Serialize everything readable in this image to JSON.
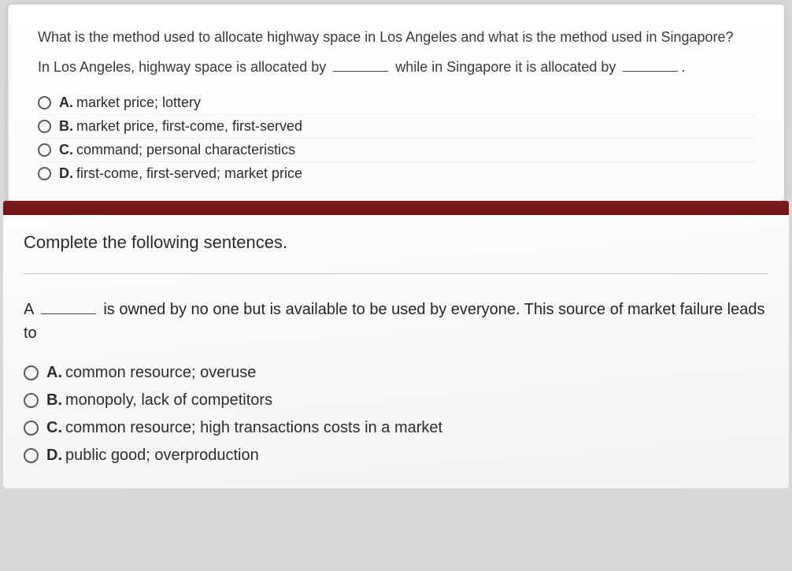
{
  "q1": {
    "prompt": "What is the method used to allocate highway space in Los Angeles and what is the method used in Singapore?",
    "fill_pre": "In Los Angeles, highway space is allocated by ",
    "fill_mid": " while in Singapore it is allocated by ",
    "fill_end": ".",
    "options": [
      {
        "letter": "A.",
        "text": "market price; lottery"
      },
      {
        "letter": "B.",
        "text": "market price, first-come, first-served"
      },
      {
        "letter": "C.",
        "text": "command; personal characteristics"
      },
      {
        "letter": "D.",
        "text": "first-come, first-served; market price"
      }
    ]
  },
  "q2": {
    "title": "Complete the following sentences.",
    "pre": "A ",
    "post": " is owned by no one but is available to be used by everyone. This source of market failure leads to ",
    "options": [
      {
        "letter": "A.",
        "text": "common resource; overuse"
      },
      {
        "letter": "B.",
        "text": "monopoly, lack of competitors"
      },
      {
        "letter": "C.",
        "text": "common resource; high transactions costs in a market"
      },
      {
        "letter": "D.",
        "text": "public good; overproduction"
      }
    ]
  },
  "colors": {
    "page_bg": "#d8d8d8",
    "card_bg": "#ffffff",
    "text": "#2d2d2d",
    "redband": "#6b1115",
    "radio_border": "#5a5a5a"
  }
}
